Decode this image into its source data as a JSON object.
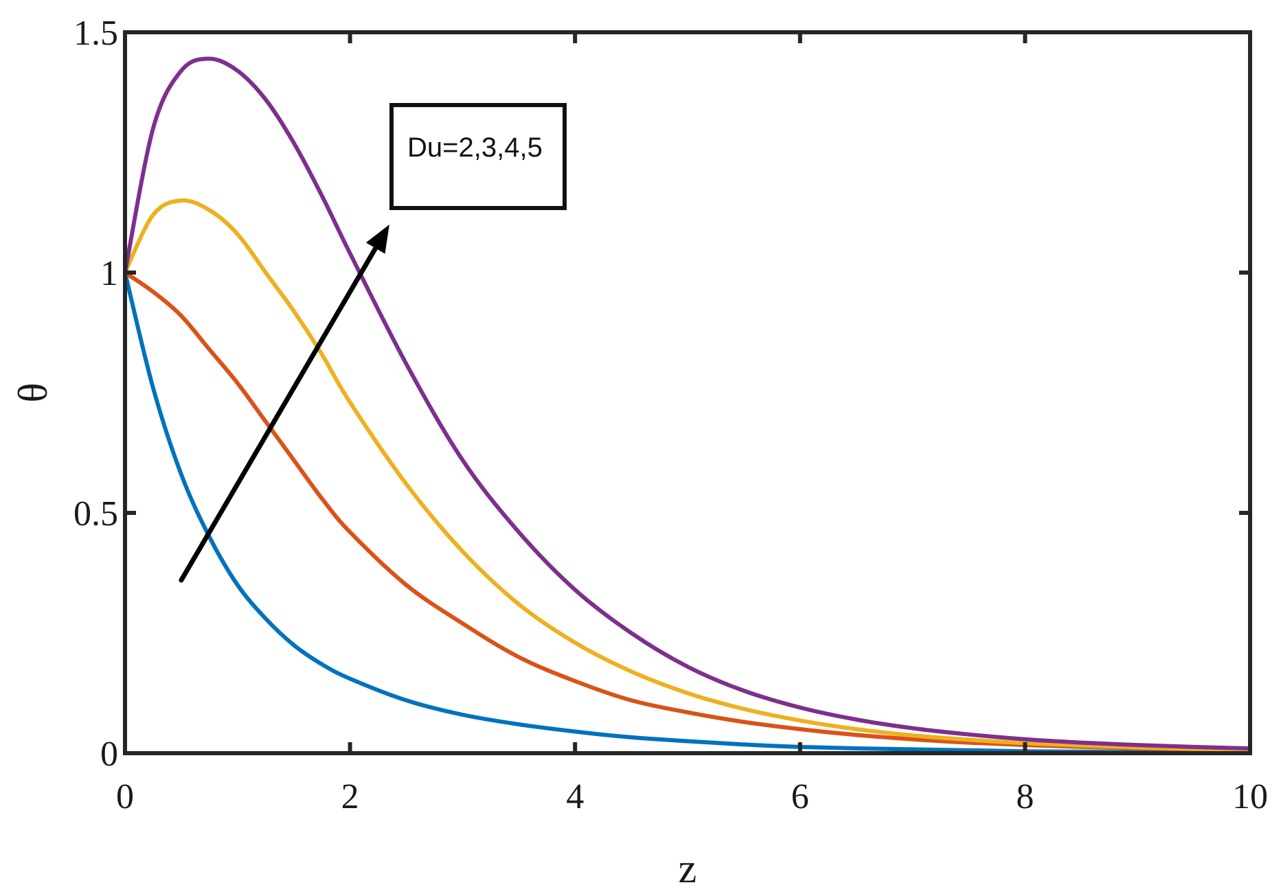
{
  "chart_data": {
    "type": "line",
    "xlabel": "z",
    "ylabel": "θ",
    "xlim": [
      0,
      10
    ],
    "ylim": [
      0,
      1.5
    ],
    "xticks": [
      "0",
      "2",
      "4",
      "6",
      "8",
      "10"
    ],
    "yticks": [
      "0",
      "0.5",
      "1",
      "1.5"
    ],
    "grid": false,
    "annotation": "Du=2,3,4,5",
    "annotation_arrow": {
      "direction": "increasing Du",
      "from": [
        0.5,
        0.36
      ],
      "to": [
        2.35,
        1.1
      ]
    },
    "x": [
      0,
      0.25,
      0.5,
      0.75,
      1,
      1.25,
      1.5,
      1.75,
      2,
      2.5,
      3,
      3.5,
      4,
      4.5,
      5,
      5.5,
      6,
      6.5,
      7,
      7.5,
      8,
      8.5,
      9,
      9.5,
      10
    ],
    "series": [
      {
        "color": "#0072BD",
        "values": [
          1.0,
          0.76,
          0.58,
          0.45,
          0.35,
          0.28,
          0.225,
          0.185,
          0.155,
          0.11,
          0.08,
          0.06,
          0.045,
          0.033,
          0.025,
          0.018,
          0.013,
          0.01,
          0.008,
          0.006,
          0.004,
          0.003,
          0.002,
          0.0015,
          0.001
        ]
      },
      {
        "color": "#D95319",
        "values": [
          1.0,
          0.96,
          0.91,
          0.84,
          0.77,
          0.69,
          0.61,
          0.53,
          0.46,
          0.35,
          0.27,
          0.2,
          0.15,
          0.11,
          0.085,
          0.065,
          0.05,
          0.038,
          0.029,
          0.022,
          0.017,
          0.013,
          0.01,
          0.008,
          0.006
        ]
      },
      {
        "color": "#EDB120",
        "values": [
          1.0,
          1.12,
          1.15,
          1.13,
          1.08,
          1.0,
          0.92,
          0.83,
          0.73,
          0.56,
          0.42,
          0.31,
          0.23,
          0.17,
          0.125,
          0.092,
          0.068,
          0.05,
          0.037,
          0.028,
          0.021,
          0.016,
          0.012,
          0.009,
          0.007
        ]
      },
      {
        "color": "#7E2F8E",
        "values": [
          1.0,
          1.3,
          1.42,
          1.445,
          1.42,
          1.36,
          1.27,
          1.16,
          1.04,
          0.81,
          0.61,
          0.46,
          0.34,
          0.25,
          0.18,
          0.13,
          0.095,
          0.07,
          0.052,
          0.039,
          0.029,
          0.022,
          0.017,
          0.013,
          0.01
        ]
      }
    ]
  }
}
